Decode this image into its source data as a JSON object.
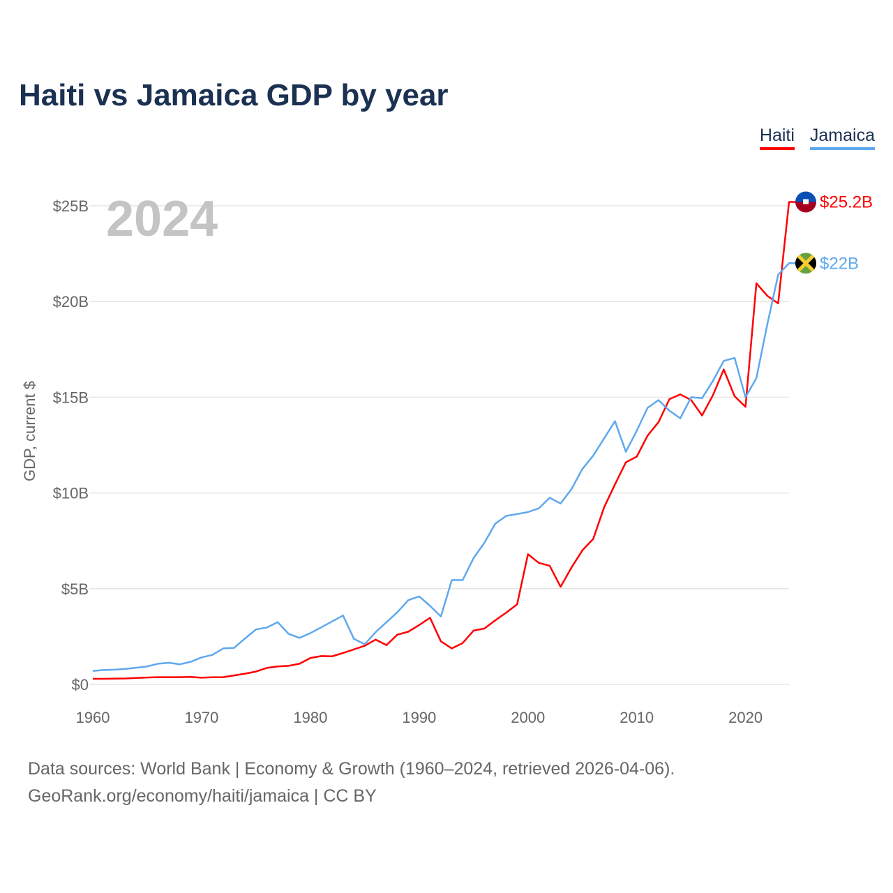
{
  "title": "Haiti vs Jamaica GDP by year",
  "footer": {
    "line1": "Data sources: World Bank | Economy & Growth (1960–2024, retrieved 2026-04-06).",
    "line2": "GeoRank.org/economy/haiti/jamaica | CC BY"
  },
  "chart_data": {
    "type": "line",
    "title": "Haiti vs Jamaica GDP by year",
    "xlabel": "",
    "ylabel": "GDP, current $",
    "year_label": "2024",
    "xlim": [
      1960,
      2024
    ],
    "ylim": [
      0,
      25
    ],
    "x_ticks": [
      1960,
      1970,
      1980,
      1990,
      2000,
      2010,
      2020
    ],
    "y_ticks": [
      {
        "v": 0,
        "label": "$0"
      },
      {
        "v": 5,
        "label": "$5B"
      },
      {
        "v": 10,
        "label": "$10B"
      },
      {
        "v": 15,
        "label": "$15B"
      },
      {
        "v": 20,
        "label": "$20B"
      },
      {
        "v": 25,
        "label": "$25B"
      }
    ],
    "grid": true,
    "legend_placement": "top-right",
    "x_start": 1960,
    "series": [
      {
        "name": "Haiti",
        "color": "#ff0000",
        "end_label": "$25.2B",
        "flag": "haiti-flag",
        "values": [
          0.29,
          0.29,
          0.3,
          0.31,
          0.34,
          0.36,
          0.38,
          0.38,
          0.38,
          0.39,
          0.35,
          0.37,
          0.38,
          0.47,
          0.56,
          0.67,
          0.86,
          0.94,
          0.97,
          1.08,
          1.38,
          1.48,
          1.47,
          1.64,
          1.83,
          2.02,
          2.34,
          2.05,
          2.6,
          2.75,
          3.1,
          3.48,
          2.25,
          1.88,
          2.16,
          2.81,
          2.92,
          3.35,
          3.75,
          4.18,
          6.8,
          6.35,
          6.2,
          5.1,
          6.1,
          7.0,
          7.6,
          9.25,
          10.45,
          11.6,
          11.9,
          13.0,
          13.7,
          14.9,
          15.15,
          14.85,
          14.05,
          15.1,
          16.45,
          15.05,
          14.5,
          20.95,
          20.3,
          19.9,
          25.2
        ]
      },
      {
        "name": "Jamaica",
        "color": "#5fa8ee",
        "end_label": "$22B",
        "flag": "jamaica-flag",
        "values": [
          0.7,
          0.75,
          0.77,
          0.81,
          0.87,
          0.94,
          1.08,
          1.13,
          1.05,
          1.18,
          1.41,
          1.54,
          1.88,
          1.91,
          2.4,
          2.87,
          2.97,
          3.25,
          2.64,
          2.43,
          2.68,
          2.98,
          3.29,
          3.6,
          2.38,
          2.1,
          2.73,
          3.25,
          3.77,
          4.4,
          4.6,
          4.1,
          3.55,
          5.45,
          5.45,
          6.6,
          7.4,
          8.4,
          8.8,
          8.9,
          9.0,
          9.2,
          9.75,
          9.45,
          10.2,
          11.25,
          11.95,
          12.85,
          13.75,
          12.15,
          13.25,
          14.45,
          14.85,
          14.3,
          13.9,
          15.0,
          14.95,
          15.85,
          16.9,
          17.05,
          15.0,
          16.0,
          18.8,
          21.4,
          22.0
        ]
      }
    ]
  }
}
